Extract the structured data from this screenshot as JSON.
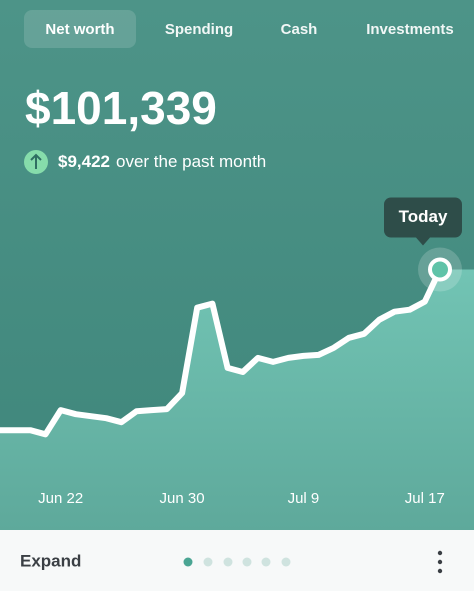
{
  "tabs": [
    "Net worth",
    "Spending",
    "Cash",
    "Investments"
  ],
  "header": {
    "value": "$101,339",
    "change": "$9,422",
    "change_text": "over the past month"
  },
  "chart_data": {
    "type": "line",
    "annotation": "Today",
    "x": [
      null,
      null,
      null,
      null,
      "Jun 22",
      null,
      null,
      null,
      null,
      null,
      null,
      null,
      "Jun 30",
      null,
      null,
      null,
      null,
      null,
      null,
      null,
      "Jul 9",
      null,
      null,
      null,
      null,
      null,
      null,
      null,
      "Jul 17",
      null
    ],
    "values": [
      91917,
      91917,
      91917,
      91681,
      93095,
      92859,
      92741,
      92624,
      92388,
      93036,
      93095,
      93154,
      94096,
      99103,
      99338,
      95569,
      95333,
      96158,
      95922,
      96158,
      96276,
      96334,
      96747,
      97336,
      97571,
      98396,
      98867,
      98985,
      99456,
      101339
    ],
    "color": "#ffffff",
    "ylim": [
      89000,
      106000
    ]
  },
  "footer": {
    "expand": "Expand"
  }
}
